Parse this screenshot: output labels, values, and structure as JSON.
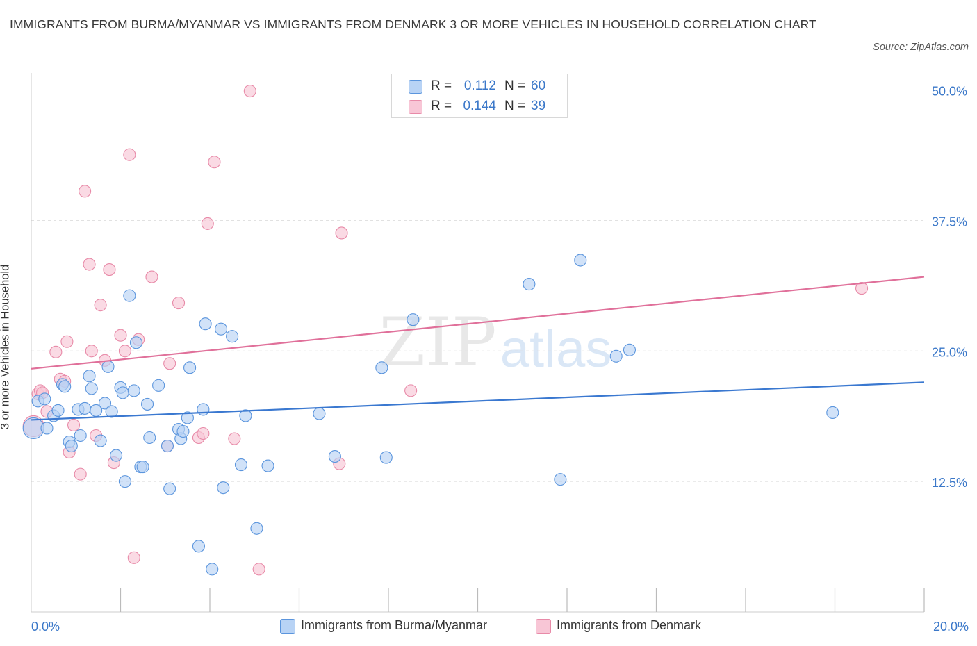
{
  "header": {
    "title": "IMMIGRANTS FROM BURMA/MYANMAR VS IMMIGRANTS FROM DENMARK 3 OR MORE VEHICLES IN HOUSEHOLD CORRELATION CHART",
    "source": "Source: ZipAtlas.com"
  },
  "watermark": {
    "zip": "ZIP",
    "atlas": "atlas"
  },
  "colors": {
    "blue_fill": "#b8d3f5",
    "blue_stroke": "#5b95dd",
    "blue_line": "#3a78d0",
    "pink_fill": "#f8c6d6",
    "pink_stroke": "#e88aa8",
    "pink_line": "#e0709a",
    "axis_text": "#3b78c9",
    "grid": "#dddddd"
  },
  "legend_top": {
    "rows": [
      {
        "r_label": "R =",
        "r_value": "0.112",
        "n_label": "N =",
        "n_value": "60"
      },
      {
        "r_label": "R =",
        "r_value": "0.144",
        "n_label": "N =",
        "n_value": "39"
      }
    ]
  },
  "legend_bottom": [
    {
      "label": "Immigrants from Burma/Myanmar"
    },
    {
      "label": "Immigrants from Denmark"
    }
  ],
  "chart_data": {
    "type": "scatter",
    "title": "IMMIGRANTS FROM BURMA/MYANMAR VS IMMIGRANTS FROM DENMARK 3 OR MORE VEHICLES IN HOUSEHOLD CORRELATION CHART",
    "xlabel": "",
    "ylabel": "3 or more Vehicles in Household",
    "xlim": [
      0,
      20
    ],
    "ylim": [
      0,
      51.3
    ],
    "x_ticks": [
      0,
      2,
      4,
      6,
      8,
      10,
      12,
      14,
      16,
      18,
      20
    ],
    "x_tick_labels": [
      {
        "value": 0,
        "label": "0.0%"
      },
      {
        "value": 20,
        "label": "20.0%"
      }
    ],
    "y_ticks": [
      {
        "value": 12.5,
        "label": "12.5%"
      },
      {
        "value": 25.0,
        "label": "25.0%"
      },
      {
        "value": 37.5,
        "label": "37.5%"
      },
      {
        "value": 50.0,
        "label": "50.0%"
      }
    ],
    "grid": true,
    "legend_position": "top-center",
    "series": [
      {
        "name": "Immigrants from Burma/Myanmar",
        "color": "blue",
        "r": 0.112,
        "n": 60,
        "trend": {
          "x": [
            0,
            20
          ],
          "y": [
            18.4,
            22.0
          ]
        },
        "points": [
          [
            0.05,
            17.6,
            "large"
          ],
          [
            0.15,
            20.2
          ],
          [
            0.3,
            20.4
          ],
          [
            0.35,
            17.6
          ],
          [
            0.5,
            18.8
          ],
          [
            0.6,
            19.3
          ],
          [
            0.7,
            21.8
          ],
          [
            0.75,
            21.6
          ],
          [
            0.85,
            16.3
          ],
          [
            0.9,
            15.9
          ],
          [
            1.05,
            19.4
          ],
          [
            1.1,
            16.9
          ],
          [
            1.2,
            19.5
          ],
          [
            1.3,
            22.6
          ],
          [
            1.35,
            21.4
          ],
          [
            1.45,
            19.3
          ],
          [
            1.55,
            16.4
          ],
          [
            1.65,
            20.0
          ],
          [
            1.72,
            23.5
          ],
          [
            1.8,
            19.2
          ],
          [
            1.9,
            15.0
          ],
          [
            2.0,
            21.5
          ],
          [
            2.05,
            21.0
          ],
          [
            2.1,
            12.5
          ],
          [
            2.2,
            30.3
          ],
          [
            2.3,
            21.2
          ],
          [
            2.35,
            25.8
          ],
          [
            2.45,
            13.9
          ],
          [
            2.5,
            13.9
          ],
          [
            2.6,
            19.9
          ],
          [
            2.65,
            16.7
          ],
          [
            2.85,
            21.7
          ],
          [
            3.05,
            15.9
          ],
          [
            3.1,
            11.8
          ],
          [
            3.3,
            17.5
          ],
          [
            3.35,
            16.6
          ],
          [
            3.4,
            17.3
          ],
          [
            3.5,
            18.6
          ],
          [
            3.55,
            23.4
          ],
          [
            3.75,
            6.3
          ],
          [
            3.85,
            19.4
          ],
          [
            3.9,
            27.6
          ],
          [
            4.05,
            4.1
          ],
          [
            4.25,
            27.1
          ],
          [
            4.3,
            11.9
          ],
          [
            4.5,
            26.4
          ],
          [
            4.7,
            14.1
          ],
          [
            4.8,
            18.8
          ],
          [
            5.05,
            8.0
          ],
          [
            5.3,
            14.0
          ],
          [
            6.45,
            19.0
          ],
          [
            6.8,
            14.9
          ],
          [
            7.85,
            23.4
          ],
          [
            7.95,
            14.8
          ],
          [
            8.55,
            28.0
          ],
          [
            11.15,
            31.4
          ],
          [
            11.85,
            12.7
          ],
          [
            12.3,
            33.7
          ],
          [
            13.1,
            24.5
          ],
          [
            13.4,
            25.1
          ],
          [
            17.95,
            19.1
          ]
        ]
      },
      {
        "name": "Immigrants from Denmark",
        "color": "pink",
        "r": 0.144,
        "n": 39,
        "trend": {
          "x": [
            0,
            20
          ],
          "y": [
            23.3,
            32.1
          ]
        },
        "points": [
          [
            0.05,
            17.8,
            "large"
          ],
          [
            0.15,
            20.9
          ],
          [
            0.2,
            21.2
          ],
          [
            0.25,
            21.0
          ],
          [
            0.35,
            19.2
          ],
          [
            0.55,
            24.9
          ],
          [
            0.65,
            22.3
          ],
          [
            0.75,
            22.1
          ],
          [
            0.8,
            25.9
          ],
          [
            0.85,
            15.3
          ],
          [
            0.95,
            17.9
          ],
          [
            1.1,
            13.2
          ],
          [
            1.2,
            40.3
          ],
          [
            1.3,
            33.3
          ],
          [
            1.35,
            25.0
          ],
          [
            1.45,
            16.9
          ],
          [
            1.55,
            29.4
          ],
          [
            1.65,
            24.1
          ],
          [
            1.75,
            32.8
          ],
          [
            1.85,
            14.3
          ],
          [
            2.0,
            26.5
          ],
          [
            2.1,
            25.0
          ],
          [
            2.2,
            43.8
          ],
          [
            2.3,
            5.2
          ],
          [
            2.4,
            26.1
          ],
          [
            2.7,
            32.1
          ],
          [
            3.05,
            15.9
          ],
          [
            3.1,
            23.8
          ],
          [
            3.3,
            29.6
          ],
          [
            3.75,
            16.7
          ],
          [
            3.85,
            17.1
          ],
          [
            3.95,
            37.2
          ],
          [
            4.1,
            43.1
          ],
          [
            4.55,
            16.6
          ],
          [
            4.9,
            49.9
          ],
          [
            5.1,
            4.1
          ],
          [
            6.9,
            14.2
          ],
          [
            6.95,
            36.3
          ],
          [
            8.5,
            21.2
          ],
          [
            18.6,
            31.0
          ]
        ]
      }
    ]
  }
}
